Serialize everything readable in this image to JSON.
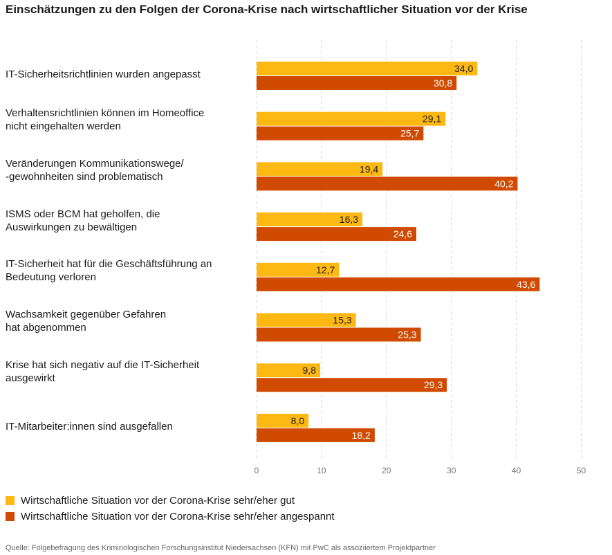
{
  "chart_data": {
    "type": "bar",
    "orientation": "horizontal",
    "title": "Einschätzungen zu den Folgen der Corona-Krise nach wirtschaftlicher Situation vor der Krise",
    "categories": [
      "IT-Sicherheitsrichtlinien wurden angepasst",
      "Verhaltensrichtlinien können im Homeoffice nicht eingehalten werden",
      "Veränderungen Kommunikationswege/ -gewohnheiten sind problematisch",
      "ISMS oder BCM hat geholfen, die Auswirkungen zu bewältigen",
      "IT-Sicherheit hat für die Geschäftsführung an Bedeutung verloren",
      "Wachsamkeit gegenüber Gefahren hat abgenommen",
      "Krise hat sich negativ auf die IT-Sicherheit ausgewirkt",
      "IT-Mitarbeiter:innen sind ausgefallen"
    ],
    "series": [
      {
        "name": "Wirtschaftliche Situation vor der Corona-Krise sehr/eher gut",
        "color": "#FDB813",
        "values": [
          34.0,
          29.1,
          19.4,
          16.3,
          12.7,
          15.3,
          9.8,
          8.0
        ],
        "labels": [
          "34,0",
          "29,1",
          "19,4",
          "16,3",
          "12,7",
          "15,3",
          "9,8",
          "8,0"
        ]
      },
      {
        "name": "Wirtschaftliche Situation vor der Corona-Krise sehr/eher angespannt",
        "color": "#D04A02",
        "values": [
          30.8,
          25.7,
          40.2,
          24.6,
          43.6,
          25.3,
          29.3,
          18.2
        ],
        "labels": [
          "30,8",
          "25,7",
          "40,2",
          "24,6",
          "43,6",
          "25,3",
          "29,3",
          "18,2"
        ]
      }
    ],
    "xlim": [
      0,
      50
    ],
    "xticks": [
      0,
      10,
      20,
      30,
      40,
      50
    ],
    "grid": "vertical dashed",
    "legend_position": "bottom-left"
  },
  "category_label_lines": [
    [
      "IT-Sicherheitsrichtlinien wurden angepasst"
    ],
    [
      "Verhaltensrichtlinien können im Homeoffice",
      "nicht eingehalten werden"
    ],
    [
      "Veränderungen Kommunikationswege/",
      "-gewohnheiten sind problematisch"
    ],
    [
      "ISMS oder BCM hat geholfen, die",
      "Auswirkungen zu bewältigen"
    ],
    [
      "IT-Sicherheit hat für die Geschäftsführung an",
      "Bedeutung verloren"
    ],
    [
      "Wachsamkeit gegenüber Gefahren",
      "hat abgenommen"
    ],
    [
      "Krise hat sich negativ auf die IT-Sicherheit",
      "ausgewirkt"
    ],
    [
      "IT-Mitarbeiter:innen sind ausgefallen"
    ]
  ],
  "source": "Quelle: Folgebefragung des Kriminologischen Forschungsinstitut Niedersachsen (KFN) mit PwC als assoziiertem Projektpartner"
}
